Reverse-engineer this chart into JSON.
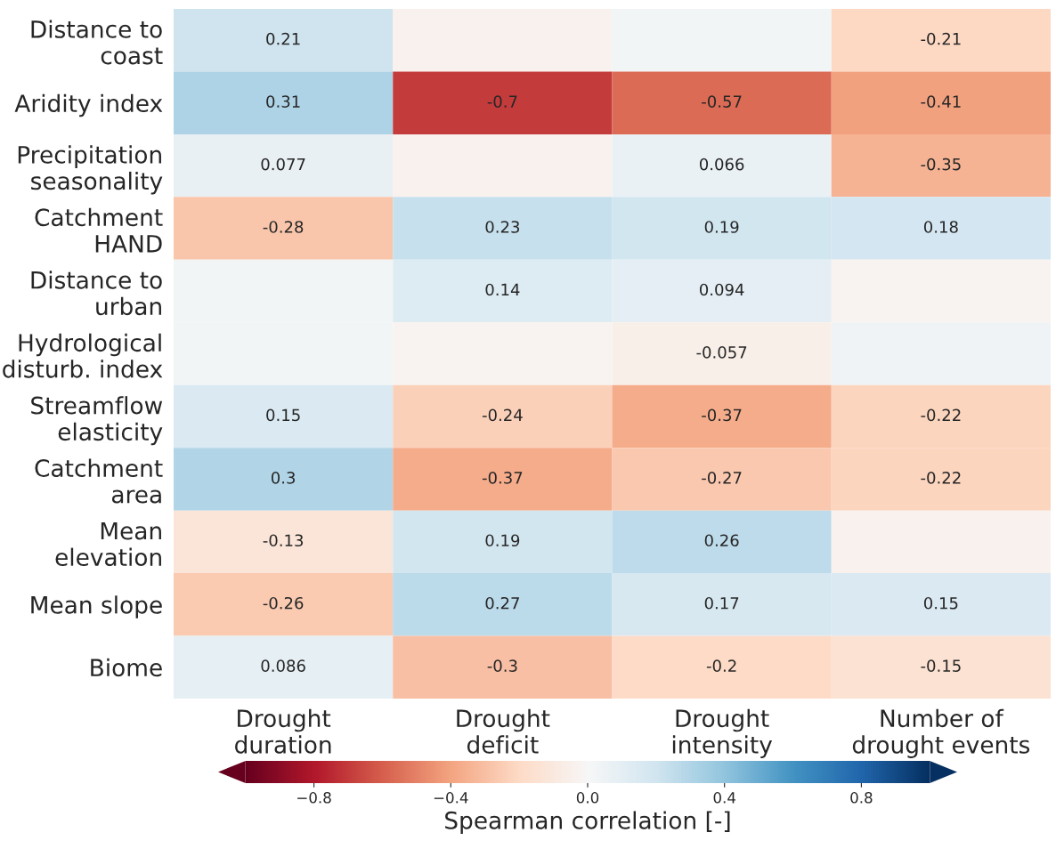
{
  "chart_data": {
    "type": "heatmap",
    "categories": [
      "Drought\nduration",
      "Drought\ndeficit",
      "Drought\nintensity",
      "Number of\ndrought events"
    ],
    "y_categories": [
      "Distance to\ncoast",
      "Aridity index",
      "Precipitation\nseasonality",
      "Catchment\nHAND",
      "Distance to\nurban",
      "Hydrological\ndisturb. index",
      "Streamflow\nelasticity",
      "Catchment\narea",
      "Mean\nelevation",
      "Mean slope",
      "Biome"
    ],
    "cells": [
      [
        0.21,
        -0.04,
        0.03,
        -0.21
      ],
      [
        0.31,
        -0.7,
        -0.57,
        -0.41
      ],
      [
        0.077,
        -0.04,
        0.066,
        -0.35
      ],
      [
        -0.28,
        0.23,
        0.19,
        0.18
      ],
      [
        0.03,
        0.14,
        0.094,
        -0.03
      ],
      [
        0.03,
        -0.03,
        -0.057,
        0.04
      ],
      [
        0.15,
        -0.24,
        -0.37,
        -0.22
      ],
      [
        0.3,
        -0.37,
        -0.27,
        -0.22
      ],
      [
        -0.13,
        0.19,
        0.26,
        -0.04
      ],
      [
        -0.26,
        0.27,
        0.17,
        0.15
      ],
      [
        0.086,
        -0.3,
        -0.2,
        -0.15
      ]
    ],
    "cell_labels": [
      [
        "0.21",
        null,
        null,
        "-0.21"
      ],
      [
        "0.31",
        "-0.7",
        "-0.57",
        "-0.41"
      ],
      [
        "0.077",
        null,
        "0.066",
        "-0.35"
      ],
      [
        "-0.28",
        "0.23",
        "0.19",
        "0.18"
      ],
      [
        null,
        "0.14",
        "0.094",
        null
      ],
      [
        null,
        null,
        "-0.057",
        null
      ],
      [
        "0.15",
        "-0.24",
        "-0.37",
        "-0.22"
      ],
      [
        "0.3",
        "-0.37",
        "-0.27",
        "-0.22"
      ],
      [
        "-0.13",
        "0.19",
        "0.26",
        null
      ],
      [
        "-0.26",
        "0.27",
        "0.17",
        "0.15"
      ],
      [
        "0.086",
        "-0.3",
        "-0.2",
        "-0.15"
      ]
    ],
    "clim": [
      -1,
      1
    ],
    "cticks": [
      {
        "value": -0.8,
        "label": "−0.8"
      },
      {
        "value": -0.4,
        "label": "−0.4"
      },
      {
        "value": 0,
        "label": "0.0"
      },
      {
        "value": 0.4,
        "label": "0.4"
      },
      {
        "value": 0.8,
        "label": "0.8"
      }
    ],
    "clabel": "Spearman correlation [-]"
  }
}
